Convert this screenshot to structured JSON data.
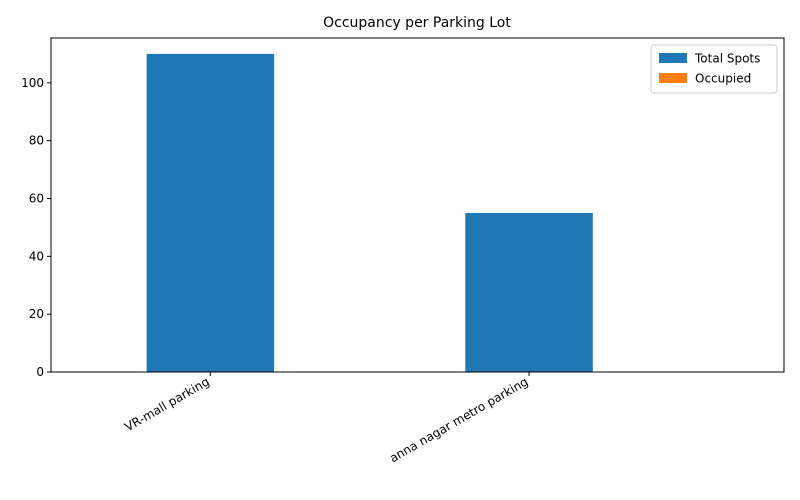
{
  "chart_data": {
    "type": "bar",
    "title": "Occupancy per Parking Lot",
    "xlabel": "",
    "ylabel": "",
    "categories": [
      "VR-mall parking",
      "anna nagar metro parking"
    ],
    "series": [
      {
        "name": "Total Spots",
        "color": "#1f77b4",
        "values": [
          110,
          55
        ]
      },
      {
        "name": "Occupied",
        "color": "#ff7f0e",
        "values": [
          0,
          0
        ]
      }
    ],
    "ylim": [
      0,
      115.5
    ],
    "yticks": [
      0,
      20,
      40,
      60,
      80,
      100
    ],
    "xtick_rotation": 30,
    "grid": false,
    "legend": "top-right"
  }
}
